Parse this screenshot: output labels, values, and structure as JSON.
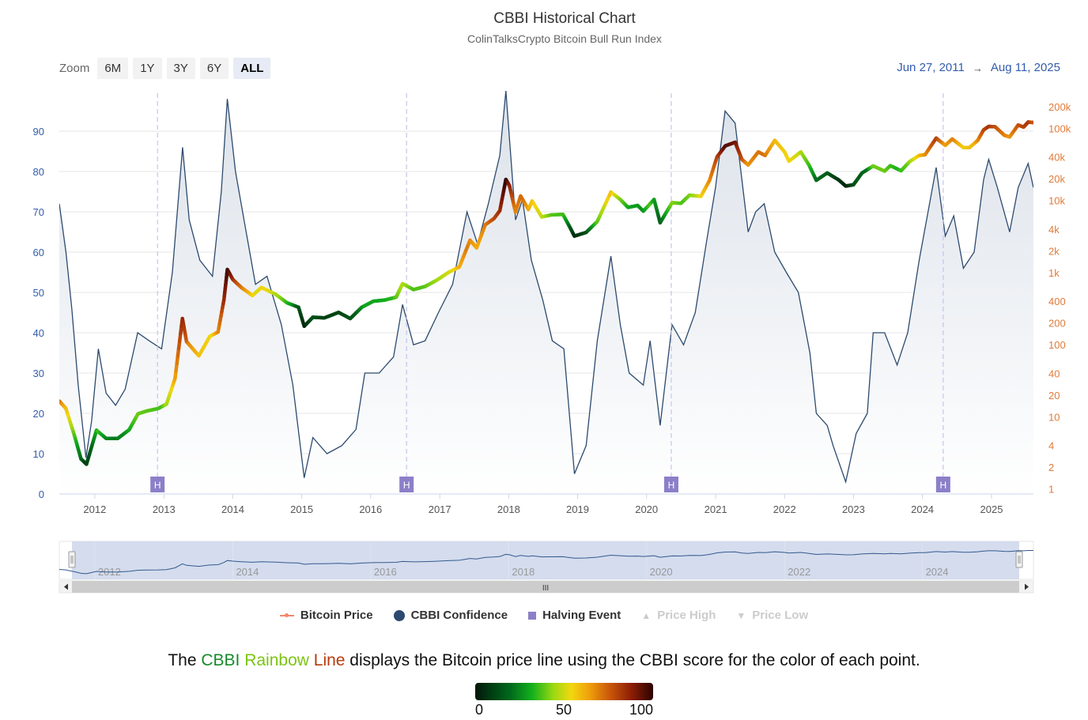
{
  "header": {
    "title": "CBBI Historical Chart",
    "subtitle": "ColinTalksCrypto Bitcoin Bull Run Index"
  },
  "zoom": {
    "label": "Zoom",
    "buttons": [
      "6M",
      "1Y",
      "3Y",
      "6Y",
      "ALL"
    ],
    "active": "ALL"
  },
  "date_range": {
    "from": "Jun 27, 2011",
    "to": "Aug 11, 2025",
    "arrow": "→"
  },
  "legend": {
    "items": [
      {
        "label": "Bitcoin Price",
        "enabled": true
      },
      {
        "label": "CBBI Confidence",
        "enabled": true
      },
      {
        "label": "Halving Event",
        "enabled": true
      },
      {
        "label": "Price High",
        "enabled": false
      },
      {
        "label": "Price Low",
        "enabled": false
      }
    ]
  },
  "caption": {
    "before": "The ",
    "w1": "CBBI",
    "w2": "Rainbow",
    "w3": "Line",
    "after": " displays the Bitcoin price line using the CBBI score for the color of each point."
  },
  "color_scale": {
    "labels": [
      "0",
      "50",
      "100"
    ],
    "colors": [
      "#01170a",
      "#14b01d",
      "#f2d70f",
      "#c8550a",
      "#2a0300"
    ]
  },
  "navigator": {
    "labels": [
      "2012",
      "2014",
      "2016",
      "2018",
      "2020",
      "2022",
      "2024"
    ],
    "scroll_glyph": "III"
  },
  "chart_data": {
    "type": "line",
    "title": "CBBI Historical Chart",
    "subtitle": "ColinTalksCrypto Bitcoin Bull Run Index",
    "x_range": [
      "2011-06-27",
      "2025-08-11"
    ],
    "x_ticks": [
      "2012",
      "2013",
      "2014",
      "2015",
      "2016",
      "2017",
      "2018",
      "2019",
      "2020",
      "2021",
      "2022",
      "2023",
      "2024",
      "2025"
    ],
    "y_left": {
      "label": "",
      "ticks": [
        0,
        10,
        20,
        30,
        40,
        50,
        60,
        70,
        80,
        90
      ],
      "range": [
        0,
        100
      ],
      "color": "#335cad"
    },
    "y_right": {
      "label": "",
      "log": true,
      "ticks": [
        1,
        2,
        4,
        10,
        20,
        40,
        100,
        200,
        400,
        1000,
        2000,
        4000,
        10000,
        20000,
        40000,
        100000,
        200000
      ],
      "tick_labels": [
        "1",
        "2",
        "4",
        "10",
        "20",
        "40",
        "100",
        "200",
        "400",
        "1k",
        "2k",
        "4k",
        "10k",
        "20k",
        "40k",
        "100k",
        "200k"
      ],
      "range": [
        0.85,
        330000
      ],
      "color": "#e07b39"
    },
    "grid": true,
    "halvings": {
      "marker": "H",
      "dates": [
        "2012-11-28",
        "2016-07-09",
        "2020-05-11",
        "2024-04-20"
      ]
    },
    "series": [
      {
        "name": "CBBI Confidence",
        "axis": "left",
        "color": "#2c4a6e",
        "points": [
          [
            "2011-06-27",
            72
          ],
          [
            "2011-08-01",
            60
          ],
          [
            "2011-09-01",
            46
          ],
          [
            "2011-10-05",
            27
          ],
          [
            "2011-11-15",
            9
          ],
          [
            "2011-12-15",
            18
          ],
          [
            "2012-01-20",
            36
          ],
          [
            "2012-03-01",
            25
          ],
          [
            "2012-04-20",
            22
          ],
          [
            "2012-06-10",
            26
          ],
          [
            "2012-08-15",
            40
          ],
          [
            "2012-10-15",
            38
          ],
          [
            "2012-12-20",
            36
          ],
          [
            "2013-02-15",
            55
          ],
          [
            "2013-04-10",
            86
          ],
          [
            "2013-05-15",
            68
          ],
          [
            "2013-07-10",
            58
          ],
          [
            "2013-09-15",
            54
          ],
          [
            "2013-11-01",
            75
          ],
          [
            "2013-12-03",
            98
          ],
          [
            "2014-01-15",
            80
          ],
          [
            "2014-03-01",
            68
          ],
          [
            "2014-05-01",
            52
          ],
          [
            "2014-07-01",
            54
          ],
          [
            "2014-09-15",
            42
          ],
          [
            "2014-11-15",
            27
          ],
          [
            "2015-01-14",
            4
          ],
          [
            "2015-03-01",
            14
          ],
          [
            "2015-05-15",
            10
          ],
          [
            "2015-08-01",
            12
          ],
          [
            "2015-10-15",
            16
          ],
          [
            "2015-12-01",
            30
          ],
          [
            "2016-02-15",
            30
          ],
          [
            "2016-05-01",
            34
          ],
          [
            "2016-06-18",
            47
          ],
          [
            "2016-08-15",
            37
          ],
          [
            "2016-10-15",
            38
          ],
          [
            "2016-12-25",
            45
          ],
          [
            "2017-03-10",
            52
          ],
          [
            "2017-05-25",
            70
          ],
          [
            "2017-07-20",
            62
          ],
          [
            "2017-09-15",
            72
          ],
          [
            "2017-11-15",
            84
          ],
          [
            "2017-12-17",
            100
          ],
          [
            "2018-02-06",
            68
          ],
          [
            "2018-03-15",
            73
          ],
          [
            "2018-05-01",
            58
          ],
          [
            "2018-07-01",
            48
          ],
          [
            "2018-08-20",
            38
          ],
          [
            "2018-10-20",
            36
          ],
          [
            "2018-12-15",
            5
          ],
          [
            "2019-02-15",
            12
          ],
          [
            "2019-04-15",
            38
          ],
          [
            "2019-06-26",
            59
          ],
          [
            "2019-08-15",
            42
          ],
          [
            "2019-10-01",
            30
          ],
          [
            "2019-12-15",
            27
          ],
          [
            "2020-01-20",
            38
          ],
          [
            "2020-03-13",
            17
          ],
          [
            "2020-05-15",
            42
          ],
          [
            "2020-07-15",
            37
          ],
          [
            "2020-09-15",
            45
          ],
          [
            "2020-11-15",
            63
          ],
          [
            "2020-12-31",
            76
          ],
          [
            "2021-02-20",
            95
          ],
          [
            "2021-04-14",
            92
          ],
          [
            "2021-06-22",
            65
          ],
          [
            "2021-08-01",
            70
          ],
          [
            "2021-09-15",
            72
          ],
          [
            "2021-11-10",
            60
          ],
          [
            "2022-01-10",
            55
          ],
          [
            "2022-03-15",
            50
          ],
          [
            "2022-05-15",
            35
          ],
          [
            "2022-06-18",
            20
          ],
          [
            "2022-08-15",
            17
          ],
          [
            "2022-09-15",
            12
          ],
          [
            "2022-11-21",
            3
          ],
          [
            "2023-01-15",
            15
          ],
          [
            "2023-03-15",
            20
          ],
          [
            "2023-04-15",
            40
          ],
          [
            "2023-06-15",
            40
          ],
          [
            "2023-08-20",
            32
          ],
          [
            "2023-10-15",
            40
          ],
          [
            "2023-12-15",
            58
          ],
          [
            "2024-03-14",
            81
          ],
          [
            "2024-05-01",
            64
          ],
          [
            "2024-06-15",
            69
          ],
          [
            "2024-08-05",
            56
          ],
          [
            "2024-10-01",
            60
          ],
          [
            "2024-11-20",
            78
          ],
          [
            "2024-12-17",
            83
          ],
          [
            "2025-02-01",
            76
          ],
          [
            "2025-04-07",
            65
          ],
          [
            "2025-05-22",
            76
          ],
          [
            "2025-07-14",
            82
          ],
          [
            "2025-08-11",
            76
          ]
        ]
      },
      {
        "name": "Bitcoin Price",
        "axis": "right",
        "color_by": "CBBI Confidence",
        "points": [
          [
            "2011-06-27",
            16.5
          ],
          [
            "2011-08-01",
            13
          ],
          [
            "2011-09-15",
            5.5
          ],
          [
            "2011-10-20",
            2.6
          ],
          [
            "2011-11-18",
            2.2
          ],
          [
            "2012-01-10",
            6.5
          ],
          [
            "2012-03-01",
            5
          ],
          [
            "2012-05-01",
            5
          ],
          [
            "2012-07-01",
            6.6
          ],
          [
            "2012-08-17",
            11
          ],
          [
            "2012-10-01",
            12
          ],
          [
            "2012-12-01",
            13
          ],
          [
            "2013-01-15",
            15
          ],
          [
            "2013-03-01",
            34
          ],
          [
            "2013-04-09",
            230
          ],
          [
            "2013-05-01",
            110
          ],
          [
            "2013-07-05",
            70
          ],
          [
            "2013-09-01",
            130
          ],
          [
            "2013-10-15",
            150
          ],
          [
            "2013-11-15",
            420
          ],
          [
            "2013-12-03",
            1100
          ],
          [
            "2014-01-01",
            800
          ],
          [
            "2014-02-15",
            620
          ],
          [
            "2014-04-15",
            480
          ],
          [
            "2014-06-01",
            620
          ],
          [
            "2014-08-15",
            500
          ],
          [
            "2014-10-15",
            380
          ],
          [
            "2014-12-15",
            330
          ],
          [
            "2015-01-14",
            180
          ],
          [
            "2015-03-01",
            240
          ],
          [
            "2015-05-01",
            235
          ],
          [
            "2015-07-15",
            280
          ],
          [
            "2015-09-15",
            230
          ],
          [
            "2015-11-15",
            330
          ],
          [
            "2016-01-15",
            400
          ],
          [
            "2016-03-15",
            415
          ],
          [
            "2016-05-15",
            455
          ],
          [
            "2016-06-18",
            700
          ],
          [
            "2016-08-15",
            580
          ],
          [
            "2016-10-15",
            640
          ],
          [
            "2016-12-15",
            780
          ],
          [
            "2017-02-15",
            1000
          ],
          [
            "2017-04-15",
            1200
          ],
          [
            "2017-06-10",
            2800
          ],
          [
            "2017-07-15",
            2200
          ],
          [
            "2017-08-30",
            4600
          ],
          [
            "2017-10-15",
            5600
          ],
          [
            "2017-11-15",
            7200
          ],
          [
            "2017-12-17",
            19500
          ],
          [
            "2018-01-05",
            16000
          ],
          [
            "2018-02-06",
            6900
          ],
          [
            "2018-03-05",
            11500
          ],
          [
            "2018-04-15",
            7500
          ],
          [
            "2018-05-05",
            9800
          ],
          [
            "2018-06-25",
            5900
          ],
          [
            "2018-08-15",
            6300
          ],
          [
            "2018-10-15",
            6400
          ],
          [
            "2018-11-20",
            4300
          ],
          [
            "2018-12-15",
            3200
          ],
          [
            "2019-02-15",
            3600
          ],
          [
            "2019-04-15",
            5100
          ],
          [
            "2019-06-26",
            13000
          ],
          [
            "2019-08-15",
            10300
          ],
          [
            "2019-09-25",
            8000
          ],
          [
            "2019-11-15",
            8500
          ],
          [
            "2019-12-15",
            7100
          ],
          [
            "2020-02-10",
            10300
          ],
          [
            "2020-03-13",
            4900
          ],
          [
            "2020-05-15",
            9300
          ],
          [
            "2020-07-01",
            9100
          ],
          [
            "2020-08-15",
            11800
          ],
          [
            "2020-10-15",
            11400
          ],
          [
            "2020-11-30",
            19000
          ],
          [
            "2021-01-08",
            40000
          ],
          [
            "2021-02-21",
            57000
          ],
          [
            "2021-04-14",
            64000
          ],
          [
            "2021-05-20",
            37000
          ],
          [
            "2021-06-22",
            31000
          ],
          [
            "2021-08-15",
            47000
          ],
          [
            "2021-09-20",
            42000
          ],
          [
            "2021-11-10",
            68000
          ],
          [
            "2022-01-01",
            47000
          ],
          [
            "2022-01-24",
            35000
          ],
          [
            "2022-03-28",
            47000
          ],
          [
            "2022-05-10",
            31000
          ],
          [
            "2022-06-18",
            19000
          ],
          [
            "2022-08-15",
            24000
          ],
          [
            "2022-10-15",
            19200
          ],
          [
            "2022-11-21",
            15800
          ],
          [
            "2023-01-01",
            16500
          ],
          [
            "2023-02-15",
            24000
          ],
          [
            "2023-04-15",
            30000
          ],
          [
            "2023-06-15",
            25500
          ],
          [
            "2023-07-15",
            30300
          ],
          [
            "2023-09-10",
            25800
          ],
          [
            "2023-10-25",
            34500
          ],
          [
            "2023-12-15",
            42000
          ],
          [
            "2024-01-15",
            43000
          ],
          [
            "2024-03-14",
            73000
          ],
          [
            "2024-05-01",
            58000
          ],
          [
            "2024-06-07",
            71000
          ],
          [
            "2024-08-05",
            54000
          ],
          [
            "2024-09-06",
            54000
          ],
          [
            "2024-10-20",
            68000
          ],
          [
            "2024-11-20",
            95000
          ],
          [
            "2024-12-17",
            106000
          ],
          [
            "2025-01-20",
            105000
          ],
          [
            "2025-03-10",
            80000
          ],
          [
            "2025-04-07",
            76000
          ],
          [
            "2025-05-22",
            111000
          ],
          [
            "2025-06-20",
            104000
          ],
          [
            "2025-07-14",
            122000
          ],
          [
            "2025-08-11",
            120000
          ]
        ]
      }
    ]
  }
}
